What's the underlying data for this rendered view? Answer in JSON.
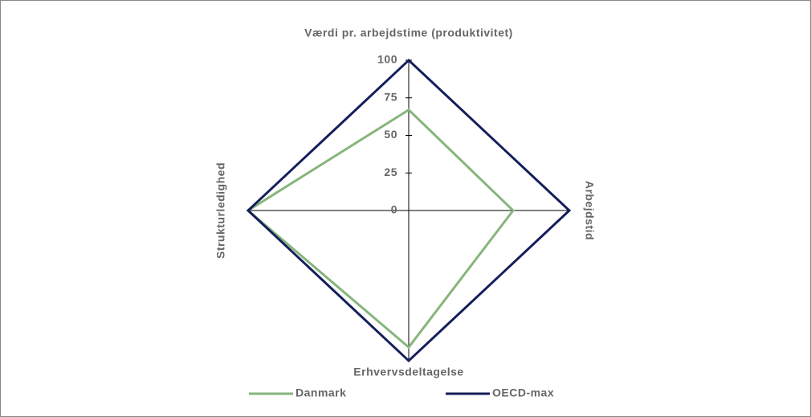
{
  "chart_data": {
    "type": "radar",
    "categories": [
      "Værdi pr. arbejdstime (produktivitet)",
      "Arbejdstid",
      "Erhvervsdeltagelse",
      "Strukturledighed"
    ],
    "series": [
      {
        "name": "Danmark",
        "color": "#86b57c",
        "values": [
          67,
          65,
          91,
          100
        ]
      },
      {
        "name": "OECD-max",
        "color": "#141e5a",
        "values": [
          100,
          100,
          100,
          100
        ]
      }
    ],
    "ylim": [
      0,
      100
    ],
    "yticks": [
      0,
      25,
      50,
      75,
      100
    ],
    "legend": "bottom"
  }
}
